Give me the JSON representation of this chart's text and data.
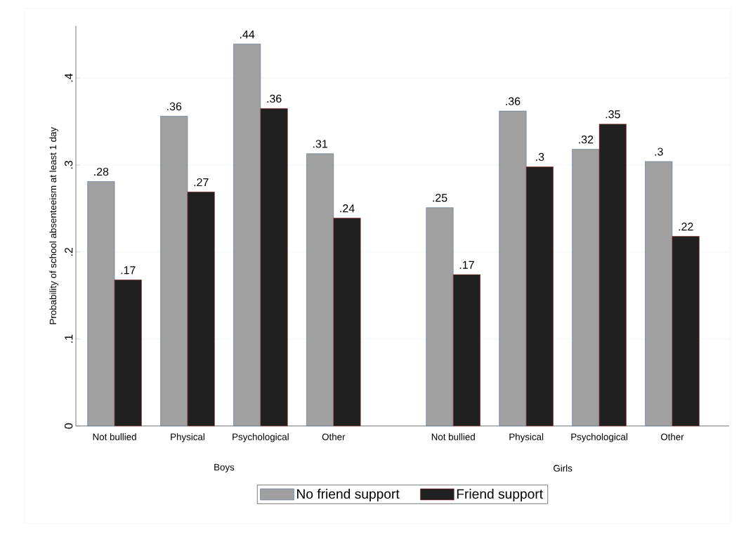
{
  "chart_data": {
    "type": "bar",
    "ylabel": "Probability of school absenteeism at least 1 day",
    "categories": [
      "Not bullied",
      "Physical",
      "Psychological",
      "Other",
      "Not bullied",
      "Physical",
      "Psychological",
      "Other"
    ],
    "series": [
      {
        "name": "No friend support",
        "color": "#a0a0a0",
        "values": [
          0.281,
          0.356,
          0.439,
          0.313,
          0.251,
          0.362,
          0.318,
          0.304
        ],
        "value_labels": [
          ".28",
          ".36",
          ".44",
          ".31",
          ".25",
          ".36",
          ".32",
          ".3"
        ]
      },
      {
        "name": "Friend support",
        "color": "#202020",
        "values": [
          0.168,
          0.269,
          0.365,
          0.239,
          0.174,
          0.298,
          0.347,
          0.218
        ],
        "value_labels": [
          ".17",
          ".27",
          ".36",
          ".24",
          ".17",
          ".3",
          ".35",
          ".22"
        ]
      }
    ],
    "annotations": [
      "Boys",
      "Girls"
    ],
    "ylim": [
      0,
      0.46
    ],
    "yticks": [
      0,
      {
        "value": 0.1,
        "label": ".1"
      },
      {
        "value": 0.2,
        "label": ".2"
      },
      {
        "value": 0.3,
        "label": ".3"
      },
      {
        "value": 0.4,
        "label": ".4"
      }
    ],
    "grid": "y",
    "legend": "bottom"
  }
}
